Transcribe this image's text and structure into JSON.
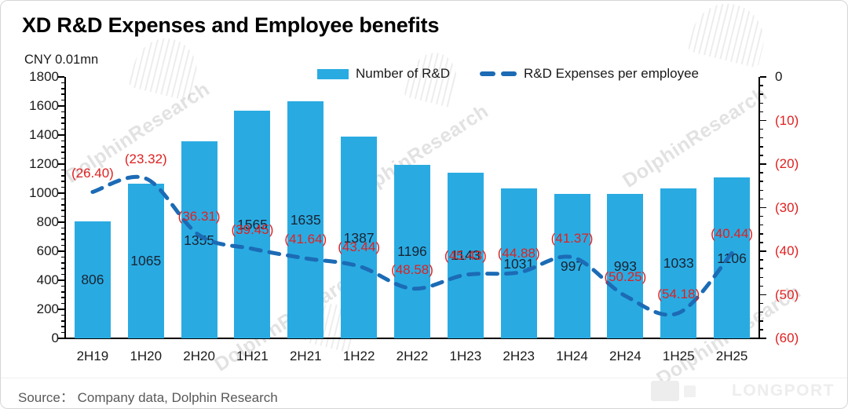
{
  "card": {
    "title": "XD R&D Expenses and Employee benefits",
    "axis_unit_label": "CNY 0.01mn",
    "source_text": "Source：  Company data, Dolphin Research",
    "watermark_text": "DolphinResearch",
    "brand_text": "LONGPORT"
  },
  "legend": [
    {
      "label": "Number of R&D"
    },
    {
      "label": "R&D Expenses per employee"
    }
  ],
  "colors": {
    "bar": "#29ABE2",
    "line": "#1C6BB5",
    "negative_label": "#E02020",
    "bar_label": "#1A2433",
    "axis_text": "#1A1A1A"
  },
  "chart_data": {
    "type": "combo-bar-line",
    "categories": [
      "2H19",
      "1H20",
      "2H20",
      "1H21",
      "2H21",
      "1H22",
      "2H22",
      "1H23",
      "2H23",
      "1H24",
      "2H24",
      "1H25",
      "2H25"
    ],
    "series": [
      {
        "name": "Number of R&D",
        "type": "bar",
        "axis": "left",
        "color": "#29ABE2",
        "values": [
          806,
          1065,
          1355,
          1565,
          1635,
          1387,
          1196,
          1143,
          1031,
          997,
          993,
          1033,
          1106
        ]
      },
      {
        "name": "R&D Expenses per employee",
        "type": "line",
        "style": "dashed",
        "axis": "right",
        "color": "#1C6BB5",
        "values": [
          -26.4,
          -23.32,
          -36.31,
          -39.45,
          -41.64,
          -43.44,
          -48.58,
          -45.43,
          -44.88,
          -41.37,
          -50.25,
          -54.18,
          -40.44
        ],
        "labels": [
          "(26.40)",
          "(23.32)",
          "(36.31)",
          "(39.45)",
          "(41.64)",
          "(43.44)",
          "(48.58)",
          "(45.43)",
          "(44.88)",
          "(41.37)",
          "(50.25)",
          "(54.18)",
          "(40.44)"
        ]
      }
    ],
    "left_axis": {
      "title": "CNY 0.01mn",
      "min": 0,
      "max": 1800,
      "step": 200,
      "minor_step": 40,
      "tick_labels": [
        "1800",
        "1600",
        "1400",
        "1200",
        "1000",
        "800",
        "600",
        "400",
        "200",
        "0"
      ]
    },
    "right_axis": {
      "min": -60,
      "max": 0,
      "step": 10,
      "minor_step": 2,
      "tick_labels": [
        "0",
        "(10)",
        "(20)",
        "(30)",
        "(40)",
        "(50)",
        "(60)"
      ]
    },
    "grid": false,
    "legend_position": "top"
  }
}
